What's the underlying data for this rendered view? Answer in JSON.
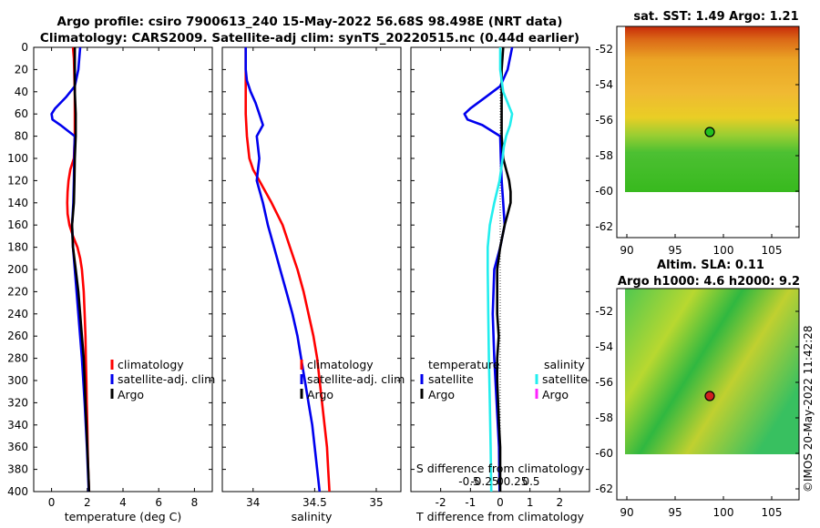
{
  "header": {
    "line1": "Argo profile: csiro 7900613_240 15-May-2022 56.68S 98.498E (NRT data)",
    "line2": "Climatology: CARS2009. Satellite-adj clim: synTS_20220515.nc (0.44d earlier)"
  },
  "colors": {
    "climatology": "#ff0000",
    "satellite": "#0000ee",
    "argo": "#000000",
    "sal_satellite": "#22eeee",
    "sal_argo": "#ff22ff"
  },
  "chart_data": [
    {
      "type": "line",
      "id": "temperature",
      "xlabel": "temperature (deg C)",
      "xlim": [
        -1,
        9
      ],
      "xticks": [
        0,
        2,
        4,
        6,
        8
      ],
      "ylim": [
        0,
        400
      ],
      "yticks": [
        0,
        20,
        40,
        60,
        80,
        100,
        120,
        140,
        160,
        180,
        200,
        220,
        240,
        260,
        280,
        300,
        320,
        340,
        360,
        380,
        400
      ],
      "legend": [
        "climatology",
        "satellite-adj. clim",
        "Argo"
      ],
      "series": [
        {
          "name": "climatology",
          "color": "#ff0000",
          "depth": [
            0,
            10,
            40,
            80,
            100,
            110,
            120,
            130,
            140,
            150,
            160,
            170,
            180,
            190,
            200,
            220,
            240,
            260,
            280,
            300,
            320,
            340,
            360,
            380,
            400
          ],
          "values": [
            1.2,
            1.25,
            1.3,
            1.3,
            1.25,
            1.05,
            0.95,
            0.9,
            0.88,
            0.9,
            1.0,
            1.2,
            1.45,
            1.6,
            1.7,
            1.8,
            1.85,
            1.9,
            1.92,
            1.95,
            1.97,
            2.0,
            2.02,
            2.05,
            2.1
          ]
        },
        {
          "name": "satellite-adj. clim",
          "color": "#0000ee",
          "depth": [
            0,
            20,
            35,
            45,
            55,
            60,
            65,
            70,
            75,
            80,
            90,
            100,
            120,
            140,
            160,
            180,
            200,
            240,
            280,
            320,
            360,
            400
          ],
          "values": [
            1.6,
            1.5,
            1.3,
            0.8,
            0.2,
            0.0,
            0.05,
            0.5,
            0.9,
            1.3,
            1.28,
            1.27,
            1.25,
            1.22,
            1.15,
            1.2,
            1.3,
            1.5,
            1.7,
            1.85,
            1.98,
            2.08
          ]
        },
        {
          "name": "Argo",
          "color": "#000000",
          "depth": [
            0,
            20,
            40,
            60,
            80,
            100,
            120,
            140,
            160,
            180,
            200,
            220,
            240,
            260,
            280,
            300,
            320,
            340,
            360,
            380,
            400
          ],
          "values": [
            1.3,
            1.3,
            1.3,
            1.35,
            1.35,
            1.3,
            1.28,
            1.25,
            1.15,
            1.2,
            1.35,
            1.5,
            1.6,
            1.7,
            1.8,
            1.85,
            1.9,
            1.95,
            2.0,
            2.05,
            2.1
          ]
        }
      ]
    },
    {
      "type": "line",
      "id": "salinity",
      "xlabel": "salinity",
      "xlim": [
        33.75,
        35.2
      ],
      "xticks": [
        34,
        34.5,
        35
      ],
      "xtick_labels": [
        "34",
        "34.5",
        "35"
      ],
      "ylim": [
        0,
        400
      ],
      "legend": [
        "climatology",
        "satellite-adj. clim",
        "Argo"
      ],
      "series": [
        {
          "name": "climatology",
          "color": "#ff0000",
          "depth": [
            0,
            20,
            40,
            60,
            80,
            100,
            110,
            120,
            140,
            160,
            180,
            200,
            220,
            240,
            260,
            280,
            300,
            320,
            340,
            360,
            380,
            400
          ],
          "values": [
            33.94,
            33.94,
            33.94,
            33.94,
            33.95,
            33.97,
            34.0,
            34.05,
            34.15,
            34.24,
            34.3,
            34.36,
            34.41,
            34.45,
            34.49,
            34.52,
            34.54,
            34.56,
            34.58,
            34.6,
            34.61,
            34.62
          ]
        },
        {
          "name": "satellite-adj. clim",
          "color": "#0000ee",
          "depth": [
            0,
            20,
            30,
            40,
            50,
            60,
            70,
            80,
            90,
            100,
            120,
            140,
            160,
            180,
            200,
            220,
            240,
            260,
            280,
            300,
            320,
            340,
            360,
            380,
            400
          ],
          "values": [
            33.94,
            33.94,
            33.95,
            33.98,
            34.02,
            34.05,
            34.08,
            34.03,
            34.04,
            34.05,
            34.03,
            34.08,
            34.12,
            34.17,
            34.22,
            34.27,
            34.32,
            34.36,
            34.39,
            34.42,
            34.45,
            34.48,
            34.5,
            34.52,
            34.54
          ]
        }
      ]
    },
    {
      "type": "line",
      "id": "differences",
      "xlabel": "T difference from climatology",
      "top_label": "S difference from climatology",
      "xlim": [
        -3,
        3
      ],
      "xticks": [
        -2,
        -1,
        0,
        1,
        2
      ],
      "xtick_labels": [
        "-2",
        "-1",
        "0",
        "1",
        "2"
      ],
      "sticks": [
        -0.5,
        -0.25,
        0,
        0.25,
        0.5
      ],
      "stick_labels": [
        "-0.5",
        "-0.25",
        "0",
        "0.25",
        "0.5"
      ],
      "ylim": [
        0,
        400
      ],
      "legend_left_title": "temperature",
      "legend_right_title": "salinity",
      "legend_left": [
        "satellite",
        "Argo"
      ],
      "legend_right": [
        "satellite",
        "Argo"
      ],
      "series": [
        {
          "name": "T satellite",
          "color": "#0000ee",
          "depth": [
            0,
            20,
            35,
            45,
            55,
            60,
            65,
            70,
            75,
            80,
            100,
            120,
            140,
            160,
            180,
            200,
            240,
            280,
            320,
            360,
            400
          ],
          "values": [
            0.4,
            0.25,
            0.0,
            -0.5,
            -1.0,
            -1.2,
            -1.1,
            -0.6,
            -0.3,
            0.0,
            0.02,
            0.05,
            0.1,
            0.15,
            0.0,
            -0.2,
            -0.25,
            -0.2,
            -0.12,
            -0.04,
            -0.02
          ]
        },
        {
          "name": "T Argo",
          "color": "#000000",
          "depth": [
            0,
            20,
            40,
            60,
            80,
            100,
            110,
            120,
            130,
            140,
            150,
            160,
            180,
            200,
            220,
            240,
            260,
            280,
            300,
            320,
            340,
            360,
            380,
            400
          ],
          "values": [
            0.1,
            0.05,
            0.05,
            0.05,
            0.05,
            0.1,
            0.2,
            0.3,
            0.35,
            0.35,
            0.25,
            0.15,
            0.0,
            -0.1,
            -0.1,
            -0.1,
            -0.05,
            -0.1,
            -0.1,
            -0.07,
            -0.04,
            0.0,
            0.0,
            0.0
          ]
        },
        {
          "name": "S satellite",
          "color": "#22eeee",
          "depth": [
            0,
            20,
            40,
            50,
            60,
            70,
            80,
            90,
            100,
            110,
            120,
            140,
            160,
            180,
            200,
            240,
            280,
            320,
            360,
            400
          ],
          "values": [
            0.0,
            0.0,
            0.1,
            0.25,
            0.4,
            0.33,
            0.2,
            0.12,
            0.08,
            0.03,
            -0.02,
            -0.2,
            -0.35,
            -0.42,
            -0.42,
            -0.4,
            -0.38,
            -0.35,
            -0.32,
            -0.3
          ]
        }
      ]
    }
  ],
  "maps": {
    "sst": {
      "title": "sat. SST: 1.49 Argo: 1.21",
      "xticks": [
        "90",
        "95",
        "100",
        "105"
      ],
      "yticks": [
        "-52",
        "-54",
        "-56",
        "-58",
        "-60",
        "-62"
      ]
    },
    "sla": {
      "title1": "Altim. SLA: 0.11",
      "title2": "Argo h1000: 4.6 h2000: 9.2",
      "xticks": [
        "90",
        "95",
        "100",
        "105"
      ],
      "yticks": [
        "-52",
        "-54",
        "-56",
        "-58",
        "-60",
        "-62"
      ]
    }
  },
  "watermark": "©IMOS 20-May-2022 11:42:28"
}
